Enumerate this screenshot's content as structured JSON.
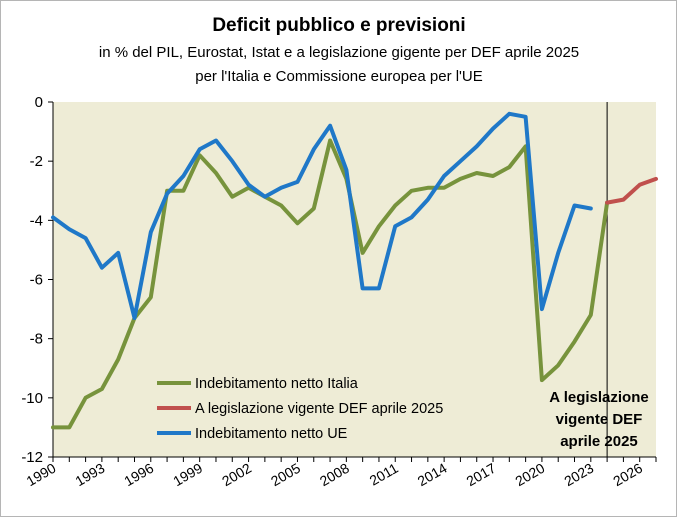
{
  "chart_data": {
    "type": "line",
    "title": "Deficit pubblico  e previsioni",
    "subtitle_lines": [
      "in % del PIL, Eurostat, Istat e a legislazione gigente  per DEF aprile 2025",
      "per l'Italia e Commissione  europea per l'UE"
    ],
    "xlabel": "",
    "ylabel": "",
    "xlim": [
      1990,
      2027
    ],
    "ylim": [
      -12,
      0
    ],
    "y_ticks": [
      0,
      -2,
      -4,
      -6,
      -8,
      -10,
      -12
    ],
    "x_ticks": [
      "1990",
      "1993",
      "1996",
      "1999",
      "2002",
      "2005",
      "2008",
      "2011",
      "2014",
      "2017",
      "2020",
      "2023",
      "2026"
    ],
    "grid": false,
    "legend_position": "bottom-left",
    "series": [
      {
        "name": "Indebitamento netto Italia",
        "color": "#77933c",
        "x": [
          1990,
          1991,
          1992,
          1993,
          1994,
          1995,
          1996,
          1997,
          1998,
          1999,
          2000,
          2001,
          2002,
          2003,
          2004,
          2005,
          2006,
          2007,
          2008,
          2009,
          2010,
          2011,
          2012,
          2013,
          2014,
          2015,
          2016,
          2017,
          2018,
          2019,
          2020,
          2021,
          2022,
          2023,
          2024
        ],
        "values": [
          -11,
          -11,
          -10,
          -9.7,
          -8.7,
          -7.3,
          -6.6,
          -3,
          -3,
          -1.8,
          -2.4,
          -3.2,
          -2.9,
          -3.2,
          -3.5,
          -4.1,
          -3.6,
          -1.3,
          -2.6,
          -5.1,
          -4.2,
          -3.5,
          -3,
          -2.9,
          -2.9,
          -2.6,
          -2.4,
          -2.5,
          -2.2,
          -1.5,
          -9.4,
          -8.9,
          -8.1,
          -7.2,
          -3.4
        ]
      },
      {
        "name": "A legislazione vigente DEF aprile 2025",
        "color": "#c0504d",
        "x": [
          2024,
          2025,
          2026,
          2027
        ],
        "values": [
          -3.4,
          -3.3,
          -2.8,
          -2.6
        ]
      },
      {
        "name": "Indebitamento netto UE",
        "color": "#1f78c8",
        "x": [
          1990,
          1991,
          1992,
          1993,
          1994,
          1995,
          1996,
          1997,
          1998,
          1999,
          2000,
          2001,
          2002,
          2003,
          2004,
          2005,
          2006,
          2007,
          2008,
          2009,
          2010,
          2011,
          2012,
          2013,
          2014,
          2015,
          2016,
          2017,
          2018,
          2019,
          2020,
          2021,
          2022,
          2023
        ],
        "values": [
          -3.9,
          -4.3,
          -4.6,
          -5.6,
          -5.1,
          -7.3,
          -4.4,
          -3.1,
          -2.5,
          -1.6,
          -1.3,
          -2.0,
          -2.8,
          -3.2,
          -2.9,
          -2.7,
          -1.6,
          -0.8,
          -2.3,
          -6.3,
          -6.3,
          -4.2,
          -3.9,
          -3.3,
          -2.5,
          -2.0,
          -1.5,
          -0.9,
          -0.4,
          -0.5,
          -7.0,
          -5.1,
          -3.5,
          -3.6
        ]
      }
    ],
    "vertical_marker": {
      "x": 2024
    },
    "annotation_lines": [
      "A legislazione",
      "vigente DEF",
      "aprile 2025"
    ]
  }
}
